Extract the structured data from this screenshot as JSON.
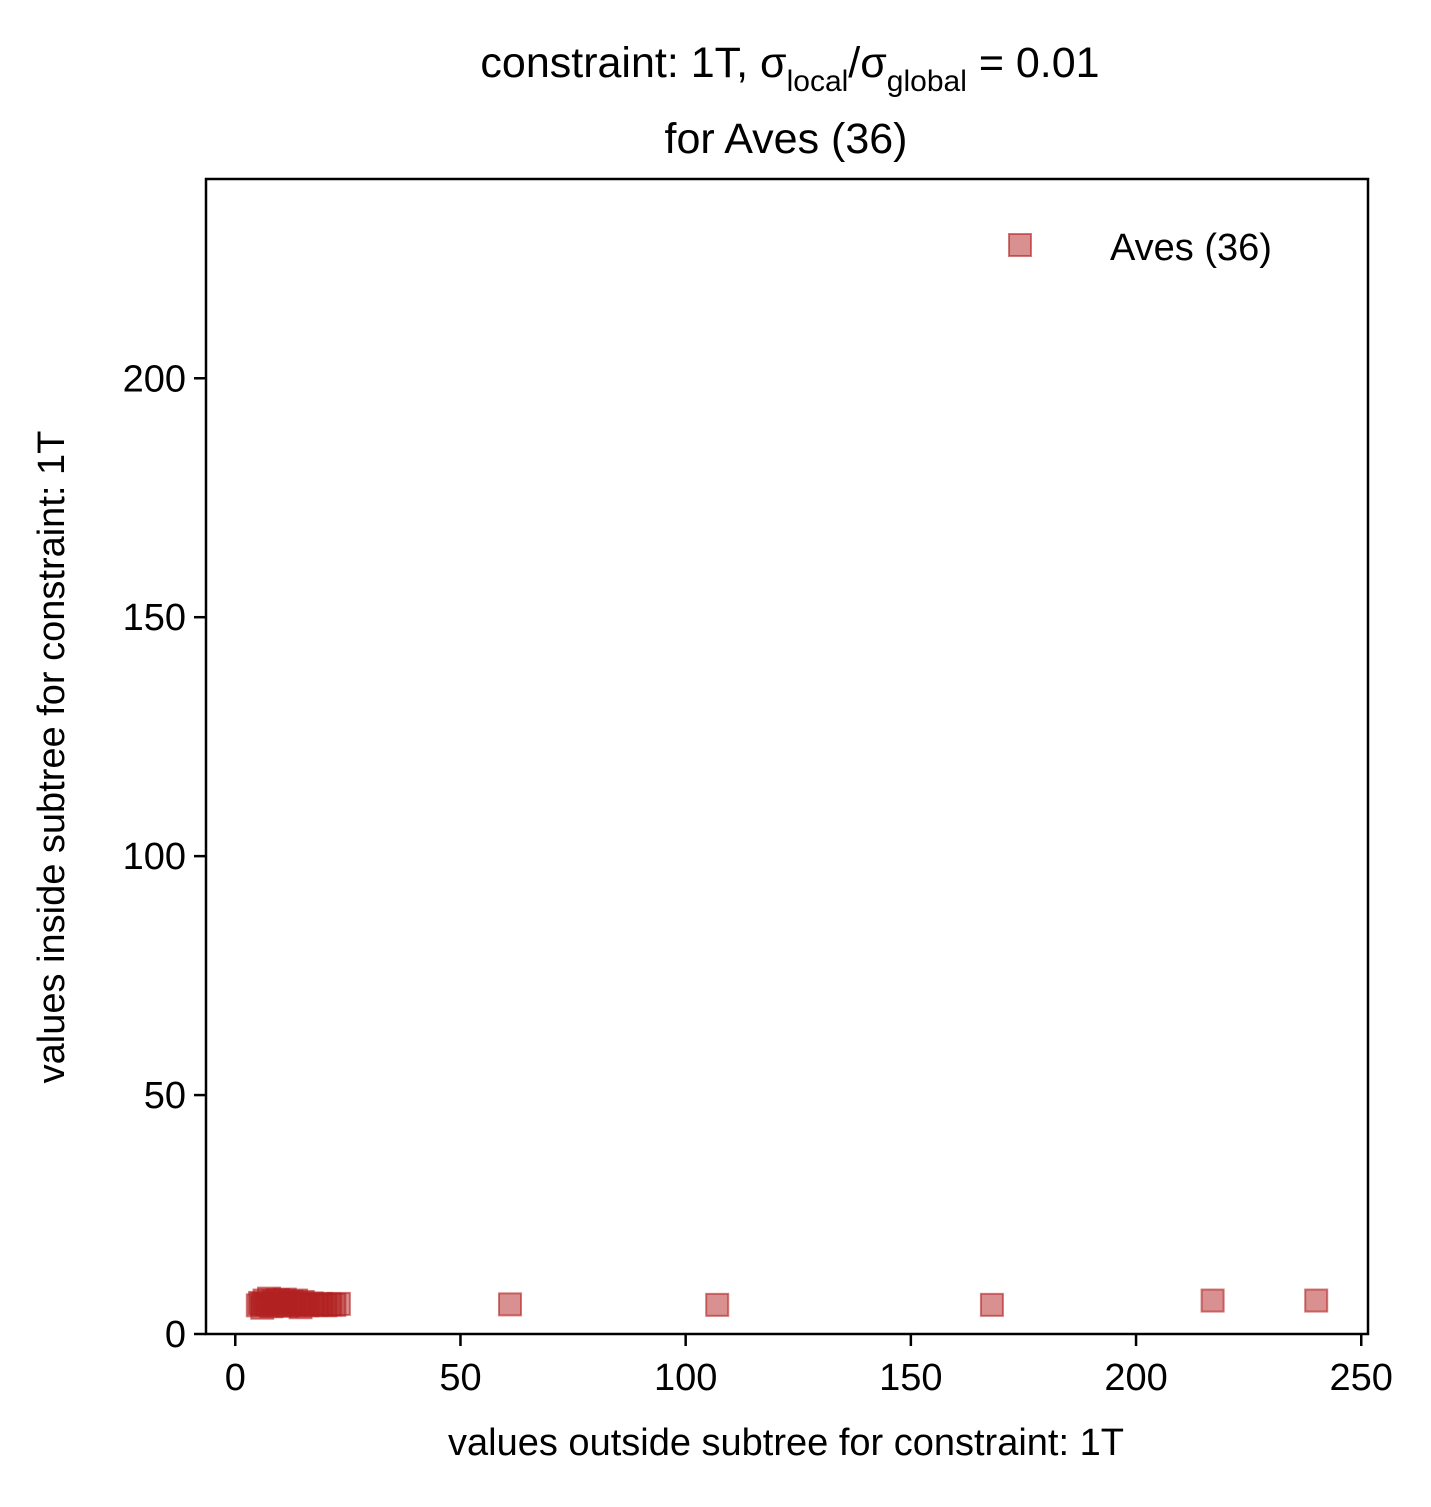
{
  "chart_data": {
    "type": "scatter",
    "title": {
      "prefix": "constraint: 1T, σ",
      "sub1": "local",
      "mid": "/σ",
      "sub2": "global",
      "suffix": " =  0.01",
      "line2": "for Aves (36)"
    },
    "xlabel": "values outside subtree for constraint: 1T",
    "ylabel": "values inside subtree for constraint: 1T",
    "xlim": [
      -6.5,
      251.5
    ],
    "ylim": [
      0,
      241.7
    ],
    "xticks": [
      0,
      50,
      100,
      150,
      200,
      250
    ],
    "yticks": [
      0,
      50,
      100,
      150,
      200
    ],
    "grid": false,
    "legend_position": "upper right",
    "series": [
      {
        "name": "Aves (36)",
        "marker": "square",
        "color": "#b22222",
        "alpha": 0.5,
        "points": [
          {
            "x": 5.0,
            "y": 6.0
          },
          {
            "x": 5.5,
            "y": 6.5
          },
          {
            "x": 6.0,
            "y": 6.3
          },
          {
            "x": 6.5,
            "y": 7.0
          },
          {
            "x": 7.0,
            "y": 6.2
          },
          {
            "x": 7.5,
            "y": 7.4
          },
          {
            "x": 8.0,
            "y": 5.8
          },
          {
            "x": 8.5,
            "y": 6.9
          },
          {
            "x": 9.0,
            "y": 6.4
          },
          {
            "x": 9.5,
            "y": 7.1
          },
          {
            "x": 10.0,
            "y": 6.0
          },
          {
            "x": 10.5,
            "y": 6.6
          },
          {
            "x": 11.0,
            "y": 7.2
          },
          {
            "x": 11.5,
            "y": 5.9
          },
          {
            "x": 12.0,
            "y": 6.5
          },
          {
            "x": 12.5,
            "y": 6.8
          },
          {
            "x": 13.0,
            "y": 6.1
          },
          {
            "x": 13.5,
            "y": 7.0
          },
          {
            "x": 14.0,
            "y": 6.3
          },
          {
            "x": 14.5,
            "y": 5.6
          },
          {
            "x": 15.0,
            "y": 6.7
          },
          {
            "x": 15.5,
            "y": 6.2
          },
          {
            "x": 16.0,
            "y": 6.0
          },
          {
            "x": 17.0,
            "y": 6.4
          },
          {
            "x": 18.0,
            "y": 6.1
          },
          {
            "x": 19.0,
            "y": 6.3
          },
          {
            "x": 20.0,
            "y": 6.0
          },
          {
            "x": 21.0,
            "y": 6.2
          },
          {
            "x": 22.0,
            "y": 6.1
          },
          {
            "x": 23.0,
            "y": 6.3
          },
          {
            "x": 61.0,
            "y": 6.2
          },
          {
            "x": 107.0,
            "y": 6.1
          },
          {
            "x": 168.0,
            "y": 6.1
          },
          {
            "x": 217.0,
            "y": 7.0
          },
          {
            "x": 240.0,
            "y": 7.0
          },
          {
            "x": 6.0,
            "y": 5.5
          }
        ]
      }
    ]
  }
}
